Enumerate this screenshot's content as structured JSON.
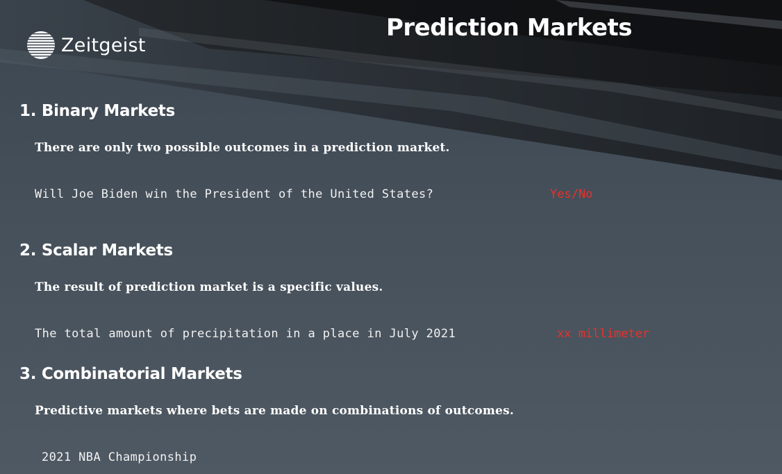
{
  "brand": {
    "name": "Zeitgeist",
    "logo_icon": "striped-globe-icon"
  },
  "title": "Prediction Markets",
  "colors": {
    "answer": "#e8312c",
    "text": "#ffffff",
    "background": "#4a545e"
  },
  "sections": [
    {
      "heading": "1. Binary Markets",
      "definition": "There are only two possible outcomes in a prediction market.",
      "example": "Will Joe Biden win the President of the United States?",
      "answer": "Yes/No"
    },
    {
      "heading": "2. Scalar Markets",
      "definition": "The result of prediction market is a specific values.",
      "example": "The total amount of precipitation in a place in July 2021",
      "answer": "xx millimeter"
    },
    {
      "heading": "3. Combinatorial Markets",
      "definition": "Predictive markets where bets are made on combinations of outcomes.",
      "example": "2021 NBA Championship"
    }
  ]
}
